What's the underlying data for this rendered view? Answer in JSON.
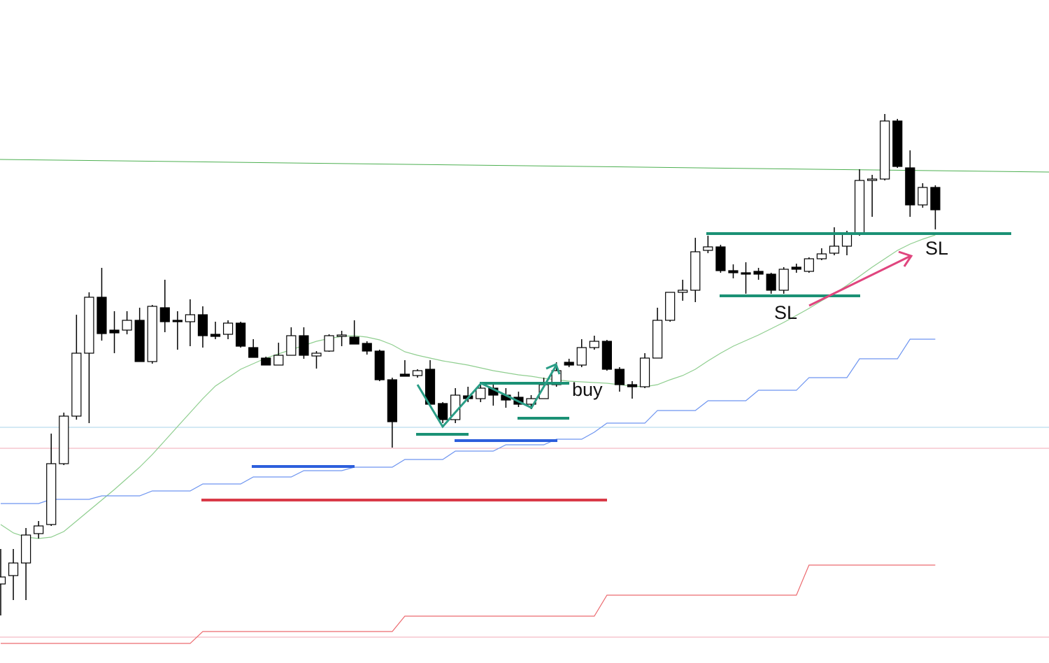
{
  "chart_data": {
    "type": "candlestick",
    "ylim": [
      0,
      948
    ],
    "up_color": "#ffffff",
    "down_color": "#000000",
    "open": [
      113,
      125,
      143,
      185,
      198,
      285,
      353,
      443,
      523,
      476,
      476,
      490,
      431,
      508,
      490,
      488,
      498,
      470,
      470,
      486,
      451,
      436,
      426,
      440,
      468,
      439,
      446,
      467,
      466,
      457,
      446,
      405,
      413,
      411,
      420,
      371,
      348,
      382,
      378,
      393,
      383,
      380,
      370,
      378,
      398,
      430,
      426,
      451,
      460,
      420,
      398,
      395,
      436,
      490,
      530,
      533,
      590,
      595,
      561,
      558,
      560,
      556,
      533,
      566,
      560,
      578,
      586,
      596,
      613,
      690,
      692,
      775,
      708,
      655,
      680
    ],
    "high": [
      163,
      163,
      193,
      203,
      328,
      358,
      498,
      530,
      565,
      503,
      503,
      508,
      512,
      548,
      503,
      520,
      510,
      488,
      490,
      488,
      463,
      438,
      458,
      480,
      480,
      446,
      470,
      475,
      490,
      460,
      448,
      408,
      433,
      420,
      433,
      373,
      393,
      395,
      398,
      400,
      393,
      388,
      383,
      408,
      430,
      435,
      463,
      468,
      462,
      423,
      403,
      443,
      508,
      530,
      548,
      608,
      611,
      598,
      570,
      573,
      565,
      558,
      566,
      571,
      580,
      593,
      623,
      618,
      706,
      698,
      785,
      778,
      733,
      686,
      683
    ],
    "low": [
      68,
      90,
      90,
      178,
      196,
      283,
      348,
      343,
      461,
      443,
      470,
      431,
      428,
      473,
      448,
      453,
      451,
      463,
      463,
      451,
      437,
      426,
      426,
      440,
      435,
      421,
      445,
      453,
      456,
      441,
      403,
      308,
      410,
      408,
      368,
      343,
      343,
      373,
      373,
      368,
      365,
      366,
      363,
      378,
      395,
      423,
      423,
      448,
      418,
      388,
      378,
      393,
      436,
      488,
      518,
      516,
      586,
      558,
      550,
      528,
      548,
      528,
      528,
      558,
      558,
      576,
      583,
      583,
      611,
      638,
      690,
      708,
      638,
      651,
      620
    ],
    "close": [
      123,
      143,
      183,
      196,
      285,
      353,
      443,
      523,
      471,
      472,
      490,
      431,
      510,
      488,
      488,
      498,
      468,
      467,
      486,
      453,
      437,
      426,
      440,
      468,
      440,
      443,
      468,
      469,
      456,
      446,
      405,
      345,
      410,
      418,
      370,
      348,
      383,
      378,
      393,
      383,
      376,
      370,
      378,
      398,
      418,
      426,
      451,
      460,
      420,
      398,
      395,
      436,
      490,
      530,
      533,
      588,
      595,
      561,
      558,
      556,
      556,
      533,
      563,
      563,
      578,
      585,
      596,
      613,
      690,
      692,
      775,
      710,
      655,
      680,
      648
    ],
    "overlays": [
      {
        "color": "#8fce8f",
        "values": [
          198,
          186,
          180,
          178,
          180,
          188,
          203,
          218,
          233,
          248,
          264,
          280,
          298,
          318,
          338,
          358,
          378,
          396,
          408,
          420,
          428,
          436,
          442,
          448,
          454,
          460,
          464,
          467,
          468,
          466,
          462,
          455,
          445,
          440,
          436,
          432,
          429,
          426,
          422,
          418,
          415,
          412,
          410,
          407,
          405,
          403,
          402,
          401,
          400,
          398,
          396,
          395,
          398,
          405,
          411,
          420,
          432,
          443,
          453,
          461,
          469,
          478,
          487,
          497,
          507,
          518,
          528,
          540,
          553,
          566,
          578,
          590,
          599,
          606,
          612
        ]
      },
      {
        "color": "#6e95f0",
        "values": [
          228,
          228,
          228,
          228,
          234,
          234,
          234,
          234,
          239,
          239,
          239,
          239,
          246,
          246,
          246,
          246,
          256,
          256,
          256,
          256,
          266,
          266,
          266,
          266,
          275,
          275,
          275,
          275,
          280,
          280,
          280,
          280,
          291,
          291,
          291,
          291,
          303,
          303,
          303,
          303,
          312,
          312,
          312,
          312,
          320,
          320,
          320,
          330,
          343,
          343,
          343,
          343,
          361,
          361,
          361,
          361,
          375,
          375,
          375,
          375,
          390,
          390,
          390,
          390,
          408,
          408,
          408,
          408,
          435,
          435,
          435,
          435,
          463,
          463,
          463
        ]
      },
      {
        "color": "#ec6a6f",
        "values": [
          28,
          28,
          28,
          28,
          28,
          28,
          28,
          28,
          28,
          28,
          28,
          28,
          28,
          28,
          28,
          28,
          45,
          45,
          45,
          45,
          45,
          45,
          45,
          45,
          45,
          45,
          45,
          45,
          45,
          45,
          45,
          45,
          67,
          67,
          67,
          67,
          67,
          67,
          67,
          67,
          67,
          67,
          67,
          67,
          67,
          67,
          67,
          67,
          97,
          97,
          97,
          97,
          97,
          97,
          97,
          97,
          97,
          97,
          97,
          97,
          97,
          97,
          97,
          97,
          140,
          140,
          140,
          140,
          140,
          140,
          140,
          140,
          140,
          140,
          140
        ]
      }
    ],
    "annotations": [
      "buy",
      "SL",
      "SL"
    ]
  }
}
